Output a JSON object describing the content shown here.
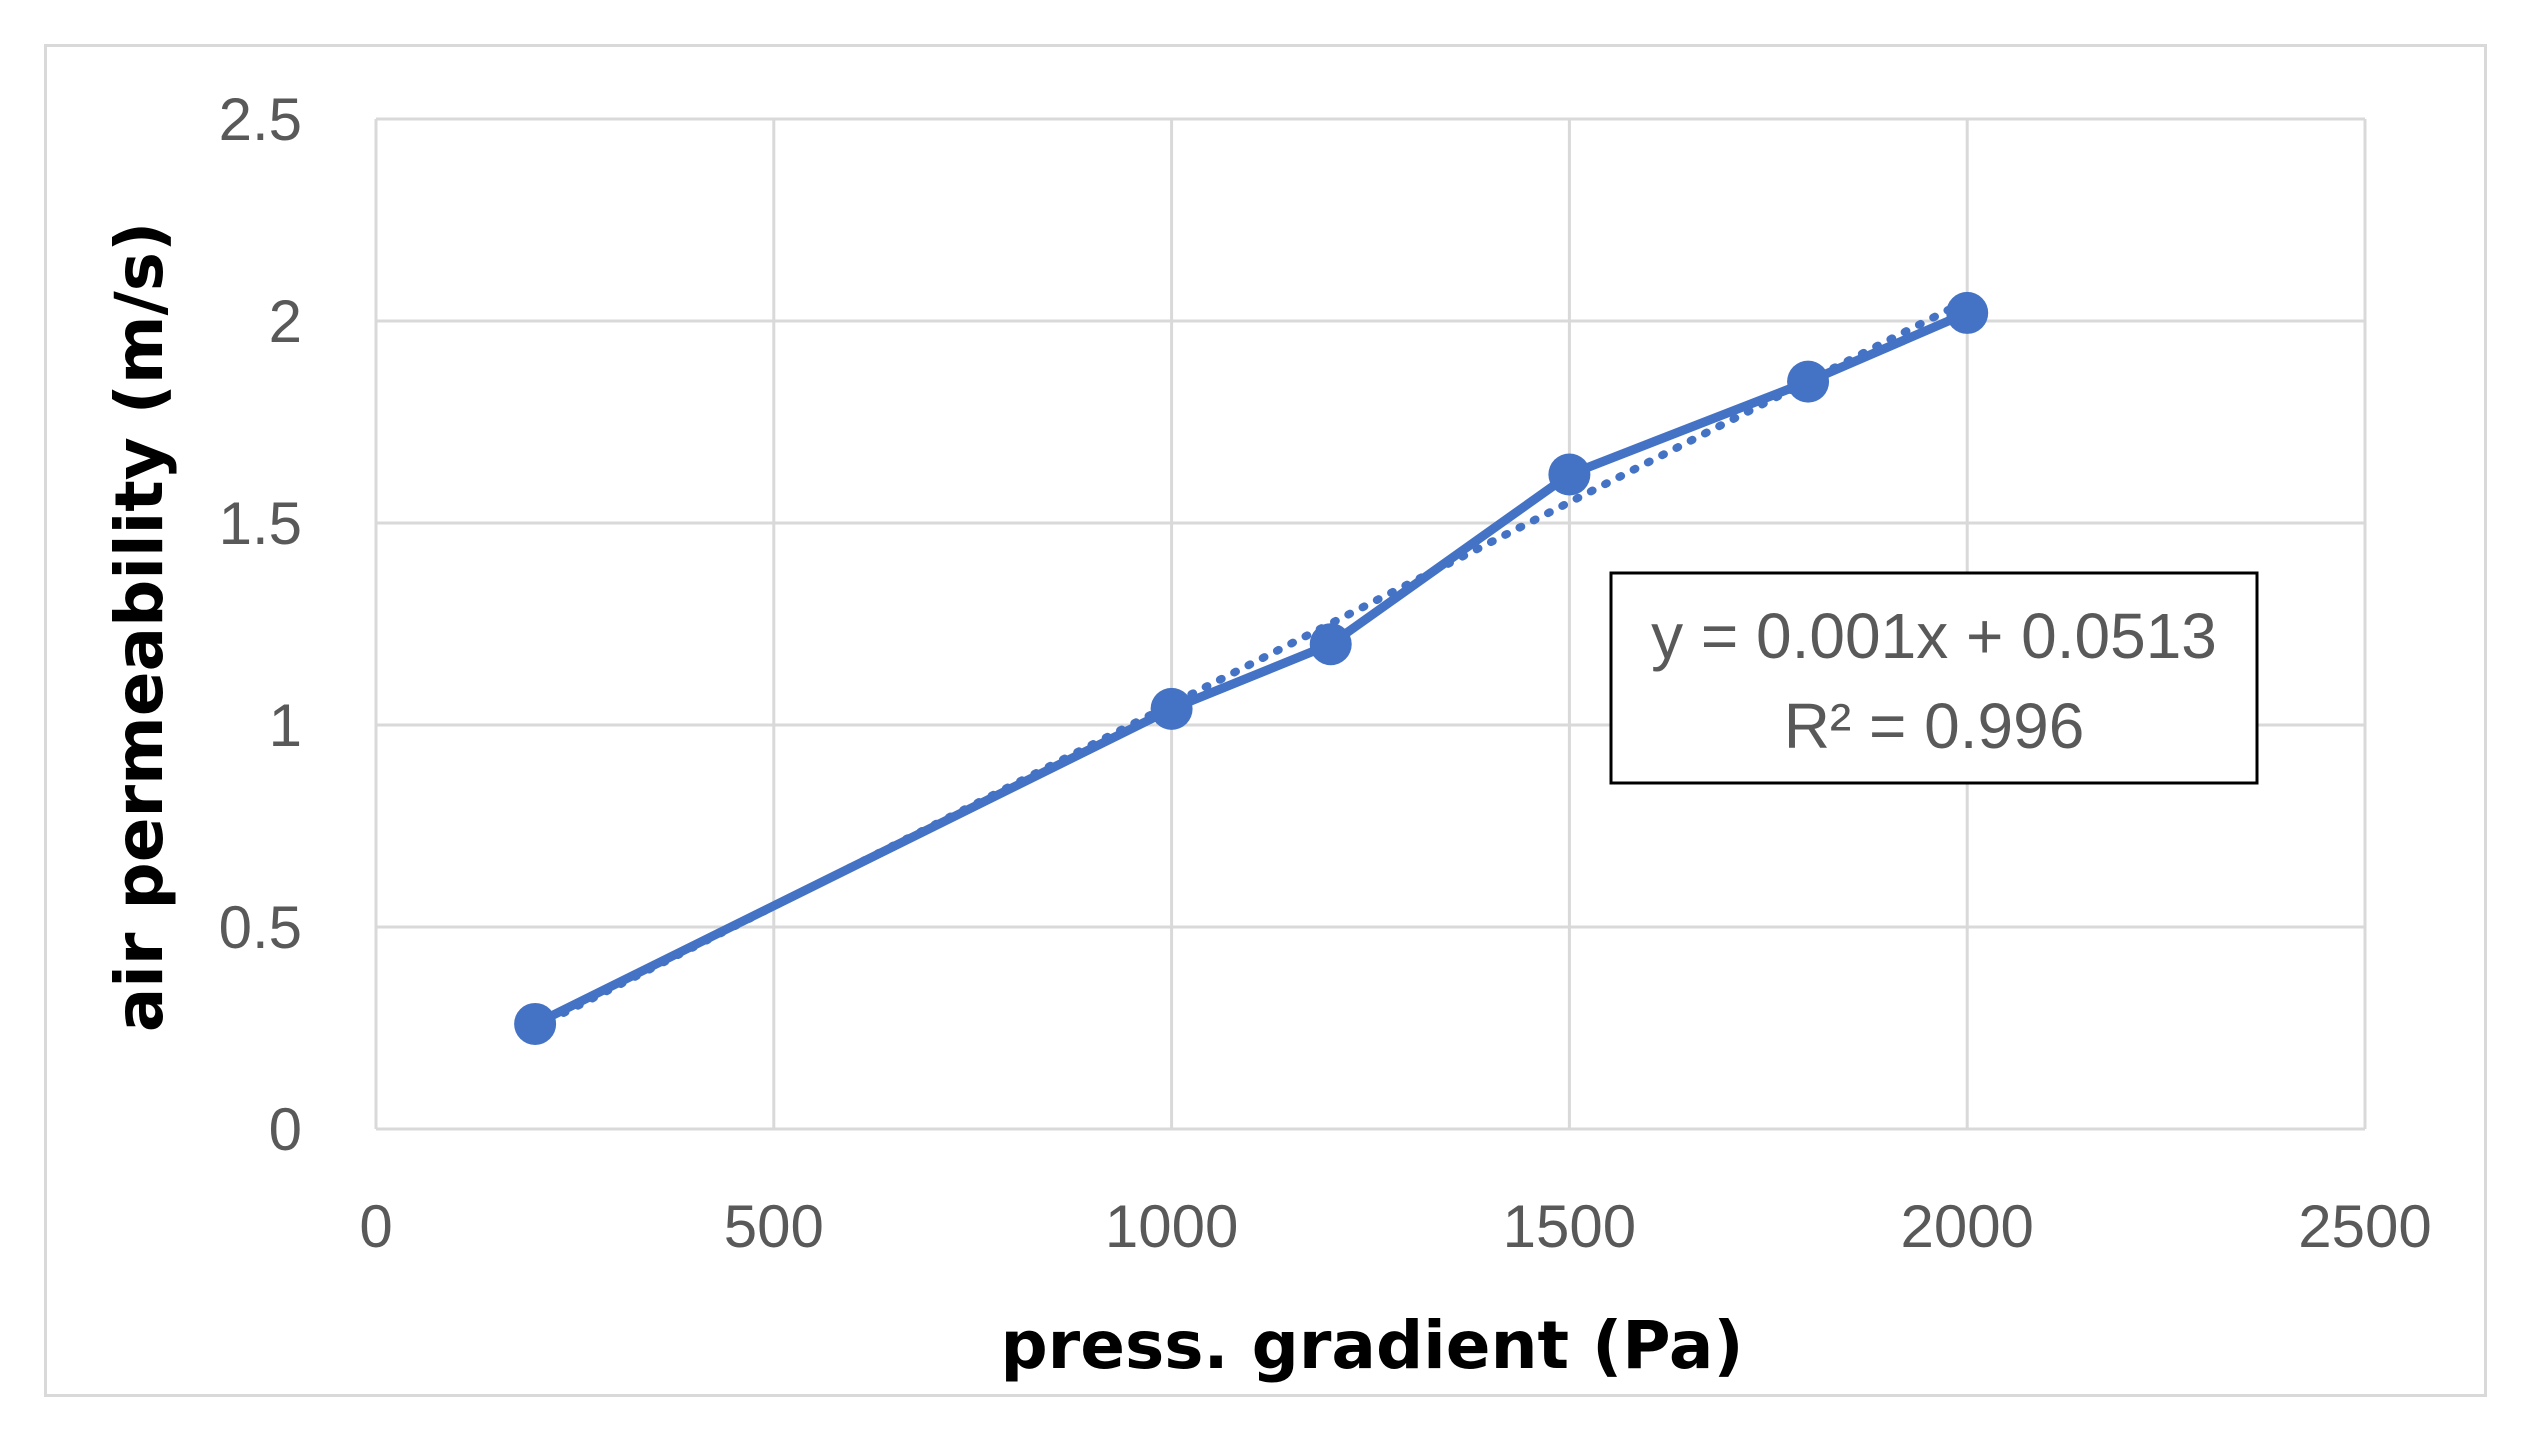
{
  "chart_data": {
    "type": "scatter",
    "title": "",
    "xlabel": "press. gradient (Pa)",
    "ylabel": "air permeability (m/s)",
    "xlim": [
      0,
      2500
    ],
    "ylim": [
      0,
      2.5
    ],
    "x_ticks": [
      0,
      500,
      1000,
      1500,
      2000,
      2500
    ],
    "y_ticks": [
      0,
      0.5,
      1,
      1.5,
      2,
      2.5
    ],
    "x_tick_labels": [
      "0",
      "500",
      "1000",
      "1500",
      "2000",
      "2500"
    ],
    "y_tick_labels": [
      "0",
      "0.5",
      "1",
      "1.5",
      "2",
      "2.5"
    ],
    "grid": true,
    "legend": "none",
    "series": [
      {
        "x": [
          200,
          1000,
          1200,
          1500,
          1800,
          2000
        ],
        "y": [
          0.26,
          1.04,
          1.2,
          1.62,
          1.85,
          2.02
        ],
        "style": "line+markers",
        "color": "#4472c4"
      }
    ],
    "trendline": {
      "type": "linear",
      "style": "dotted",
      "slope": 0.001,
      "intercept": 0.0513,
      "x_range": [
        200,
        2000
      ],
      "color": "#4472c4"
    },
    "annotations": {
      "equation": "y = 0.001x + 0.0513",
      "r_squared": "R² = 0.996"
    }
  },
  "colors": {
    "series": "#4472c4",
    "grid": "#d9d9d9",
    "tick_text": "#595959",
    "frame": "#d9d9d9"
  }
}
